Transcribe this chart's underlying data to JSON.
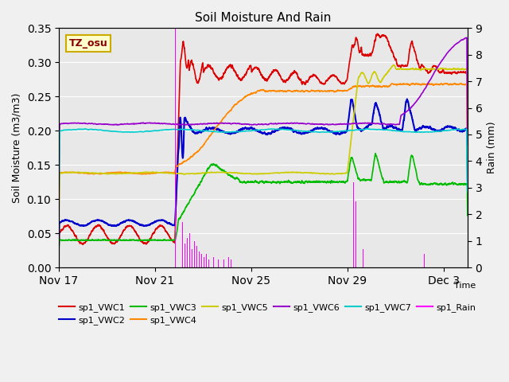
{
  "title": "Soil Moisture And Rain",
  "xlabel": "Time",
  "ylabel_left": "Soil Moisture (m3/m3)",
  "ylabel_right": "Rain (mm)",
  "ylim_left": [
    0.0,
    0.35
  ],
  "ylim_right": [
    0.0,
    9.0
  ],
  "yticks_left": [
    0.0,
    0.05,
    0.1,
    0.15,
    0.2,
    0.25,
    0.3,
    0.35
  ],
  "yticks_right": [
    0.0,
    1.0,
    2.0,
    3.0,
    4.0,
    5.0,
    6.0,
    7.0,
    8.0,
    9.0
  ],
  "xtick_labels": [
    "Nov 17",
    "Nov 21",
    "Nov 25",
    "Nov 29",
    "Dec 3"
  ],
  "xtick_positions": [
    0,
    4,
    8,
    12,
    16
  ],
  "annotation_text": "TZ_osu",
  "background_color": "#f0f0f0",
  "plot_bg_color": "#e8e8e8",
  "colors": {
    "VWC1": "#dd0000",
    "VWC2": "#0000cc",
    "VWC3": "#00bb00",
    "VWC4": "#ff8800",
    "VWC5": "#cccc00",
    "VWC6": "#9900cc",
    "VWC7": "#00cccc",
    "Rain": "#ff00ff"
  }
}
